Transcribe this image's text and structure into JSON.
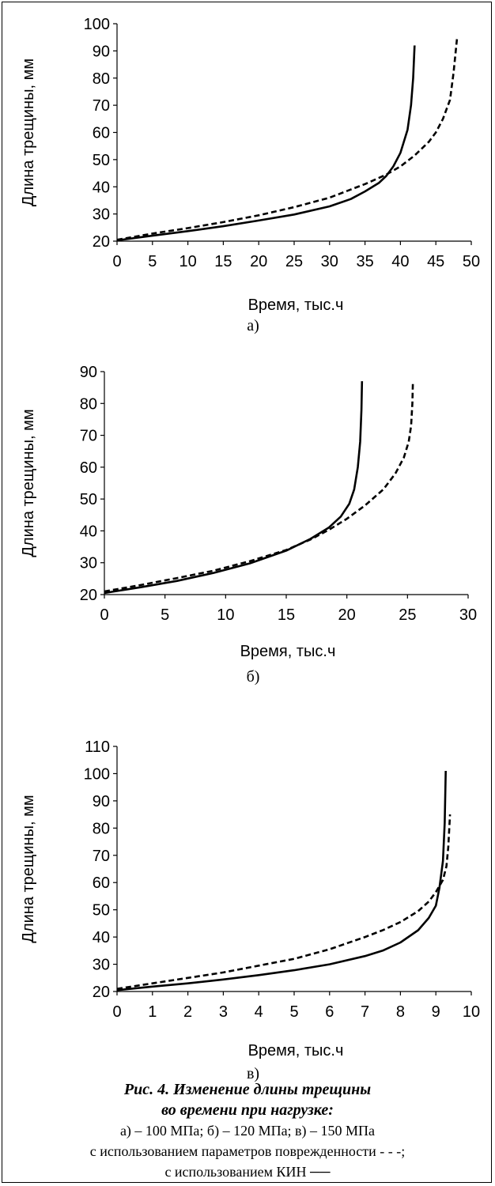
{
  "chart_data": [
    {
      "type": "line",
      "ylabel": "Длина трещины, мм",
      "xlabel": "Время, тыс.ч",
      "panel_label": "а)",
      "xlim": [
        0,
        50
      ],
      "ylim": [
        20,
        100
      ],
      "xticks": [
        0,
        5,
        10,
        15,
        20,
        25,
        30,
        35,
        40,
        45,
        50
      ],
      "yticks": [
        20,
        30,
        40,
        50,
        60,
        70,
        80,
        90,
        100
      ],
      "grid": false,
      "series": [
        {
          "style": "dashed",
          "color": "#000000",
          "x": [
            0,
            5,
            10,
            15,
            20,
            25,
            30,
            35,
            38,
            40,
            42,
            44,
            45,
            46,
            47,
            47.5,
            48
          ],
          "y": [
            20.5,
            22.8,
            24.8,
            27,
            29.5,
            32.5,
            36,
            41,
            44.5,
            47.5,
            51.5,
            56.5,
            60,
            65,
            72,
            82,
            95
          ]
        },
        {
          "style": "solid",
          "color": "#000000",
          "x": [
            0,
            5,
            10,
            15,
            20,
            25,
            30,
            33,
            35,
            37,
            38,
            39,
            40,
            41,
            41.5,
            41.8,
            42
          ],
          "y": [
            20.3,
            22,
            23.7,
            25.5,
            27.6,
            29.8,
            32.8,
            35.5,
            38.3,
            41.5,
            44,
            47.5,
            52.5,
            61,
            70,
            80,
            92
          ]
        }
      ]
    },
    {
      "type": "line",
      "ylabel": "Длина трещины, мм",
      "xlabel": "Время, тыс.ч",
      "panel_label": "б)",
      "xlim": [
        0,
        30
      ],
      "ylim": [
        20,
        90
      ],
      "xticks": [
        0,
        5,
        10,
        15,
        20,
        25,
        30
      ],
      "yticks": [
        20,
        30,
        40,
        50,
        60,
        70,
        80,
        90
      ],
      "grid": false,
      "series": [
        {
          "style": "dashed",
          "color": "#000000",
          "x": [
            0,
            3,
            6,
            9,
            12,
            15,
            17,
            18.5,
            20,
            21.5,
            23,
            24,
            24.7,
            25.1,
            25.3,
            25.4,
            25.45
          ],
          "y": [
            21,
            23,
            25.2,
            27.5,
            30.5,
            34,
            37.3,
            40.3,
            43.8,
            48,
            53,
            58,
            63,
            68,
            73,
            80,
            87
          ]
        },
        {
          "style": "solid",
          "color": "#000000",
          "x": [
            0,
            3,
            6,
            9,
            12,
            15,
            17,
            18.5,
            19.5,
            20.2,
            20.6,
            20.9,
            21.1,
            21.2,
            21.25
          ],
          "y": [
            20.5,
            22.3,
            24.3,
            26.8,
            29.8,
            33.8,
            37.5,
            41,
            44.5,
            48.5,
            53,
            60,
            68,
            78,
            87
          ]
        }
      ]
    },
    {
      "type": "line",
      "ylabel": "Длина трещины, мм",
      "xlabel": "Время, тыс.ч",
      "panel_label": "в)",
      "xlim": [
        0,
        10
      ],
      "ylim": [
        20,
        110
      ],
      "xticks": [
        0,
        1,
        2,
        3,
        4,
        5,
        6,
        7,
        8,
        9,
        10
      ],
      "yticks": [
        20,
        30,
        40,
        50,
        60,
        70,
        80,
        90,
        100,
        110
      ],
      "grid": false,
      "series": [
        {
          "style": "dashed",
          "color": "#000000",
          "x": [
            0,
            1,
            2,
            3,
            4,
            5,
            6,
            7,
            7.5,
            8,
            8.5,
            8.8,
            9.0,
            9.2,
            9.3,
            9.35,
            9.4
          ],
          "y": [
            21,
            23,
            25,
            27,
            29.5,
            32,
            35.5,
            40,
            42.5,
            45.5,
            49.5,
            53,
            56.5,
            61,
            66,
            73,
            85
          ]
        },
        {
          "style": "solid",
          "color": "#000000",
          "x": [
            0,
            1,
            2,
            3,
            4,
            5,
            6,
            7,
            7.5,
            8,
            8.5,
            8.8,
            9.0,
            9.1,
            9.2,
            9.25,
            9.28
          ],
          "y": [
            20.5,
            21.8,
            23,
            24.4,
            26,
            27.8,
            30,
            33,
            35,
            38,
            42.5,
            47,
            51.5,
            58,
            68,
            82,
            101
          ]
        }
      ]
    }
  ],
  "caption": {
    "title_line1": "Рис. 4. Изменение длины трещины",
    "title_line2": "во времени при нагрузке:",
    "line3": "а) – 100 МПа; б) – 120 МПа; в) – 150 МПа",
    "line4": "с использованием параметров поврежденности - - -;",
    "line5": "с использованием КИН ──"
  }
}
